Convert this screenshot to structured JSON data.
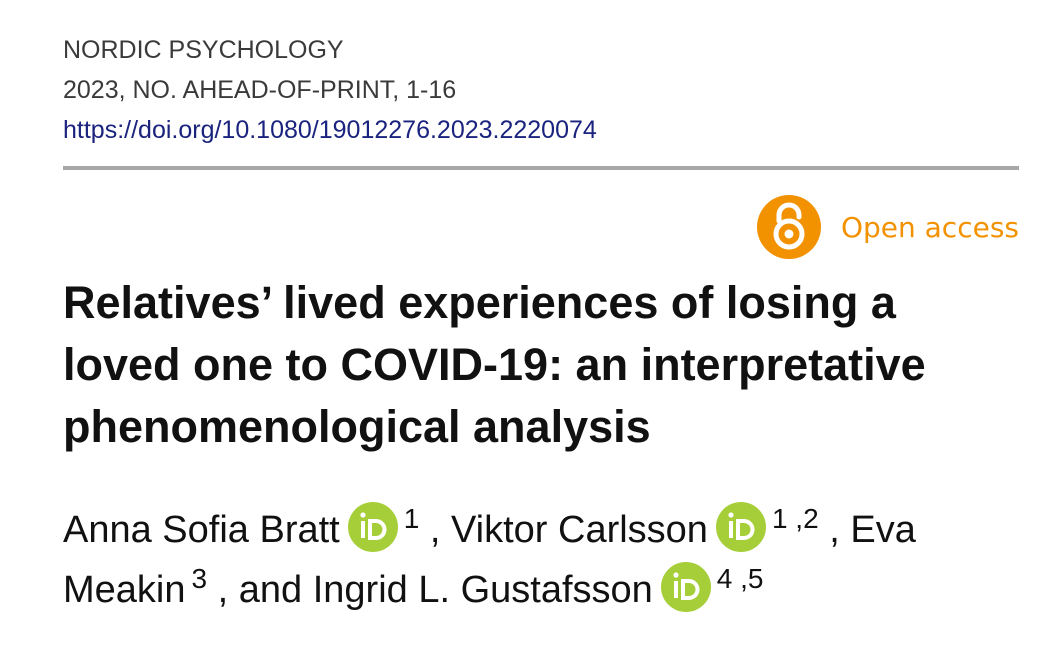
{
  "journal": {
    "name": "NORDIC PSYCHOLOGY",
    "issue": "2023, NO. AHEAD-OF-PRINT, 1-16",
    "doi": "https://doi.org/10.1080/19012276.2023.2220074"
  },
  "open_access": {
    "label": "Open access",
    "icon": "open-access-lock-icon",
    "color": "#f39200"
  },
  "article": {
    "title": "Relatives’ lived experiences of losing a loved one to COVID-19: an interpretative phenomenological analysis"
  },
  "authors": [
    {
      "name": "Anna Sofia Bratt",
      "orcid": true,
      "affiliations": "1",
      "sep": " ,"
    },
    {
      "name": "Viktor Carlsson",
      "orcid": true,
      "affiliations": "1 ,2",
      "sep": " ,"
    },
    {
      "name": "Eva Meakin",
      "orcid": false,
      "affiliations": "3",
      "sep": " , and"
    },
    {
      "name": "Ingrid L. Gustafsson",
      "orcid": true,
      "affiliations": "4 ,5",
      "sep": ""
    }
  ],
  "orcid_color": "#a6ce39"
}
